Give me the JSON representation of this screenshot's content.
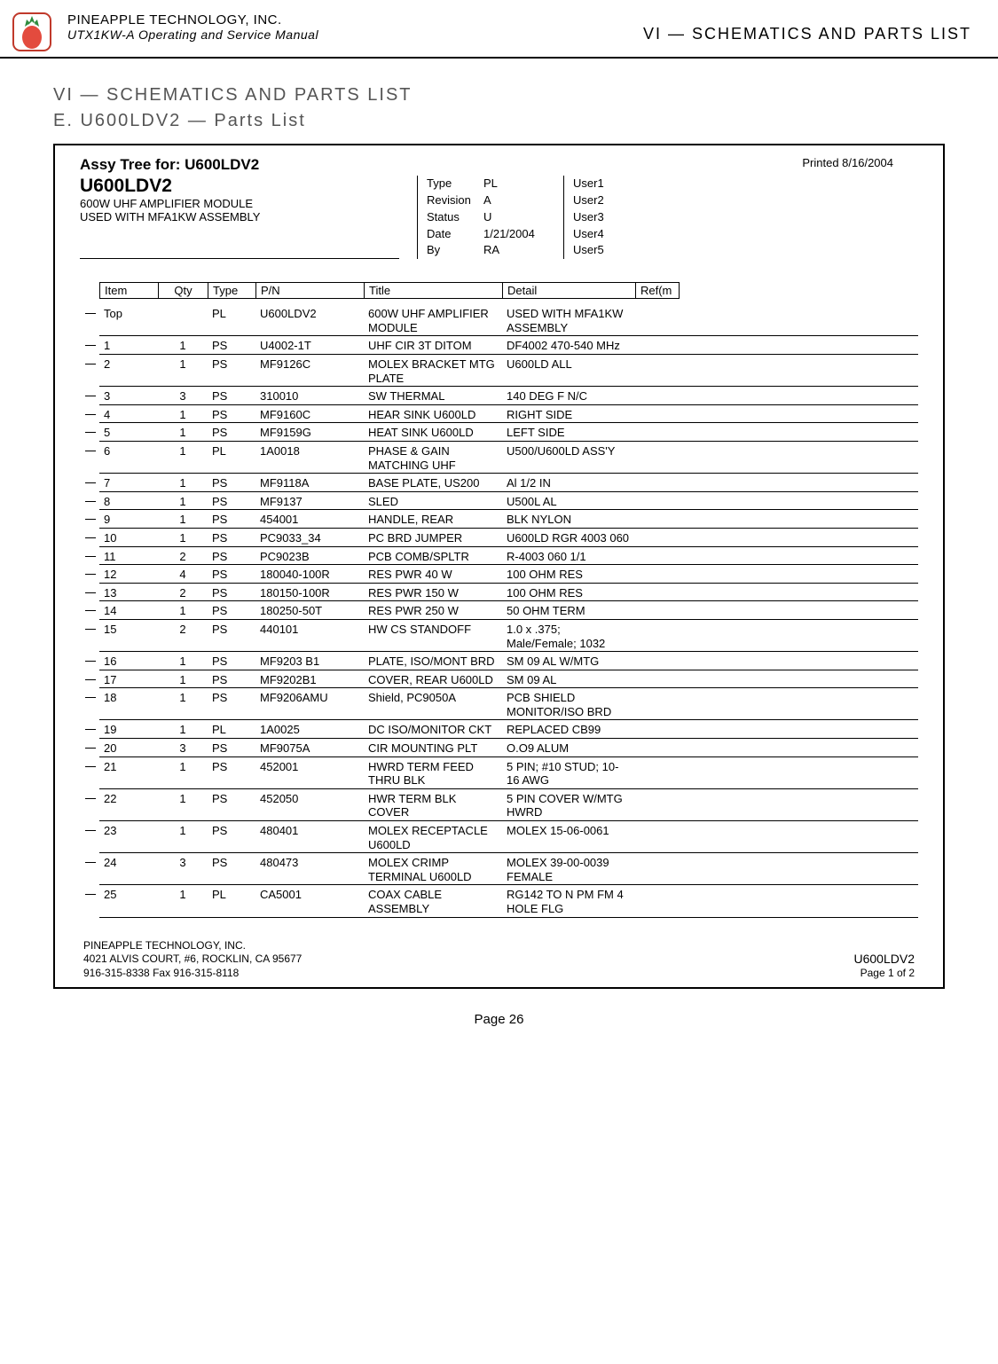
{
  "header": {
    "company": "PINEAPPLE TECHNOLOGY, INC.",
    "manual": "UTX1KW-A Operating and Service Manual",
    "right": "VI — SCHEMATICS AND PARTS LIST"
  },
  "titles": {
    "section": "VI — SCHEMATICS AND PARTS LIST",
    "subsection": "E. U600LDV2 — Parts List"
  },
  "assy": {
    "prefix": "Assy Tree for:  ",
    "name": "U600LDV2",
    "printed": "Printed 8/16/2004",
    "code": "U600LDV2",
    "desc1": "600W UHF AMPLIFIER MODULE",
    "desc2": "USED WITH MFA1KW ASSEMBLY"
  },
  "meta": {
    "labels": [
      "Type",
      "Revision",
      "Status",
      "Date",
      "By"
    ],
    "values": [
      "PL",
      "A",
      "U",
      "1/21/2004",
      "RA"
    ],
    "users": [
      "User1",
      "User2",
      "User3",
      "User4",
      "User5"
    ]
  },
  "columns": [
    "Item",
    "Qty",
    "Type",
    "P/N",
    "Title",
    "Detail",
    "Ref(m"
  ],
  "rows": [
    {
      "item": "Top",
      "qty": "",
      "type": "PL",
      "pn": "U600LDV2",
      "title": "600W UHF AMPLIFIER MODULE",
      "detail": "USED WITH MFA1KW ASSEMBLY"
    },
    {
      "item": "1",
      "qty": "1",
      "type": "PS",
      "pn": "U4002-1T",
      "title": "UHF CIR 3T DITOM",
      "detail": "DF4002  470-540 MHz"
    },
    {
      "item": "2",
      "qty": "1",
      "type": "PS",
      "pn": "MF9126C",
      "title": "MOLEX BRACKET MTG PLATE",
      "detail": "U600LD ALL"
    },
    {
      "item": "3",
      "qty": "3",
      "type": "PS",
      "pn": "310010",
      "title": "SW THERMAL",
      "detail": "140 DEG F N/C"
    },
    {
      "item": "4",
      "qty": "1",
      "type": "PS",
      "pn": "MF9160C",
      "title": "HEAR SINK U600LD",
      "detail": "RIGHT SIDE"
    },
    {
      "item": "5",
      "qty": "1",
      "type": "PS",
      "pn": "MF9159G",
      "title": "HEAT SINK U600LD",
      "detail": "LEFT SIDE"
    },
    {
      "item": "6",
      "qty": "1",
      "type": "PL",
      "pn": "1A0018",
      "title": "PHASE & GAIN MATCHING UHF",
      "detail": "U500/U600LD ASS'Y"
    },
    {
      "item": "7",
      "qty": "1",
      "type": "PS",
      "pn": "MF9118A",
      "title": "BASE PLATE, US200",
      "detail": "Al 1/2 IN"
    },
    {
      "item": "8",
      "qty": "1",
      "type": "PS",
      "pn": "MF9137",
      "title": "SLED",
      "detail": "U500L AL"
    },
    {
      "item": "9",
      "qty": "1",
      "type": "PS",
      "pn": "454001",
      "title": "HANDLE, REAR",
      "detail": "BLK NYLON"
    },
    {
      "item": "10",
      "qty": "1",
      "type": "PS",
      "pn": "PC9033_34",
      "title": "PC BRD JUMPER",
      "detail": "U600LD RGR 4003 060"
    },
    {
      "item": "11",
      "qty": "2",
      "type": "PS",
      "pn": "PC9023B",
      "title": "PCB COMB/SPLTR",
      "detail": "R-4003 060 1/1"
    },
    {
      "item": "12",
      "qty": "4",
      "type": "PS",
      "pn": "180040-100R",
      "title": "RES PWR 40 W",
      "detail": "100 OHM RES"
    },
    {
      "item": "13",
      "qty": "2",
      "type": "PS",
      "pn": "180150-100R",
      "title": "RES PWR 150 W",
      "detail": "100 OHM RES"
    },
    {
      "item": "14",
      "qty": "1",
      "type": "PS",
      "pn": "180250-50T",
      "title": "RES PWR 250 W",
      "detail": "50 OHM TERM"
    },
    {
      "item": "15",
      "qty": "2",
      "type": "PS",
      "pn": "440101",
      "title": "HW CS STANDOFF",
      "detail": "1.0 x .375; Male/Female; 1032"
    },
    {
      "item": "16",
      "qty": "1",
      "type": "PS",
      "pn": "MF9203 B1",
      "title": "PLATE, ISO/MONT BRD",
      "detail": "SM 09 AL W/MTG"
    },
    {
      "item": "17",
      "qty": "1",
      "type": "PS",
      "pn": "MF9202B1",
      "title": "COVER, REAR U600LD",
      "detail": "SM 09 AL"
    },
    {
      "item": "18",
      "qty": "1",
      "type": "PS",
      "pn": "MF9206AMU",
      "title": "Shield, PC9050A",
      "detail": "PCB SHIELD MONITOR/ISO BRD"
    },
    {
      "item": "19",
      "qty": "1",
      "type": "PL",
      "pn": "1A0025",
      "title": "DC ISO/MONITOR CKT",
      "detail": "REPLACED CB99"
    },
    {
      "item": "20",
      "qty": "3",
      "type": "PS",
      "pn": "MF9075A",
      "title": "CIR MOUNTING PLT",
      "detail": "O.O9 ALUM"
    },
    {
      "item": "21",
      "qty": "1",
      "type": "PS",
      "pn": "452001",
      "title": "HWRD TERM FEED THRU BLK",
      "detail": "5 PIN; #10 STUD; 10-16 AWG"
    },
    {
      "item": "22",
      "qty": "1",
      "type": "PS",
      "pn": "452050",
      "title": "HWR TERM BLK COVER",
      "detail": "5 PIN COVER W/MTG HWRD"
    },
    {
      "item": "23",
      "qty": "1",
      "type": "PS",
      "pn": "480401",
      "title": "MOLEX RECEPTACLE U600LD",
      "detail": "MOLEX 15-06-0061"
    },
    {
      "item": "24",
      "qty": "3",
      "type": "PS",
      "pn": "480473",
      "title": "MOLEX CRIMP TERMINAL U600LD",
      "detail": "MOLEX 39-00-0039 FEMALE"
    },
    {
      "item": "25",
      "qty": "1",
      "type": "PL",
      "pn": "CA5001",
      "title": "COAX CABLE ASSEMBLY",
      "detail": "RG142 TO N PM FM 4 HOLE FLG"
    }
  ],
  "footer": {
    "company": "PINEAPPLE TECHNOLOGY, INC.",
    "address": "4021 ALVIS COURT, #6, ROCKLIN, CA 95677",
    "phones": "916-315-8338   Fax 916-315-8118",
    "part": "U600LDV2",
    "page": "Page 1 of   2"
  },
  "page_number": "Page 26",
  "logo": {
    "leaf_color": "#2e8b3d",
    "body_color": "#e34b3e",
    "border_color": "#c0392b"
  }
}
